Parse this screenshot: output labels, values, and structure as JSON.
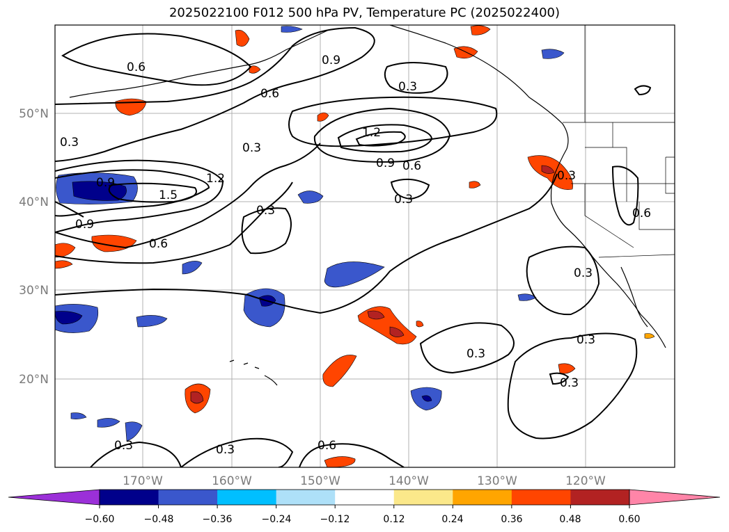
{
  "title": "2025022100 F012 500 hPa PV, Temperature PC (2025022400)",
  "lat_labels": [
    "50°N",
    "40°N",
    "30°N",
    "20°N"
  ],
  "lon_labels": [
    "170°W",
    "160°W",
    "150°W",
    "140°W",
    "130°W",
    "120°W"
  ],
  "colorbar": {
    "ticks": [
      "−0.60",
      "−0.48",
      "−0.36",
      "−0.24",
      "−0.12",
      "0.12",
      "0.24",
      "0.36",
      "0.48",
      "0.60"
    ],
    "colors": [
      "#9b30d8",
      "#00008b",
      "#3a57cc",
      "#00bfff",
      "#aee0f8",
      "#ffffff",
      "#fbe88a",
      "#ffa500",
      "#ff4500",
      "#b22222",
      "#ff85a8"
    ]
  },
  "contour_labels": [
    "0.6",
    "0.9",
    "0.6",
    "0.3",
    "0.3",
    "0.3",
    "1.2",
    "0.9",
    "0.6",
    "0.3",
    "0.9",
    "1.5",
    "1.2",
    "0.9",
    "0.6",
    "0.3",
    "0.3",
    "0.6",
    "0.3",
    "0.3",
    "0.3",
    "0.3",
    "0.3",
    "0.3",
    "0.6"
  ]
}
